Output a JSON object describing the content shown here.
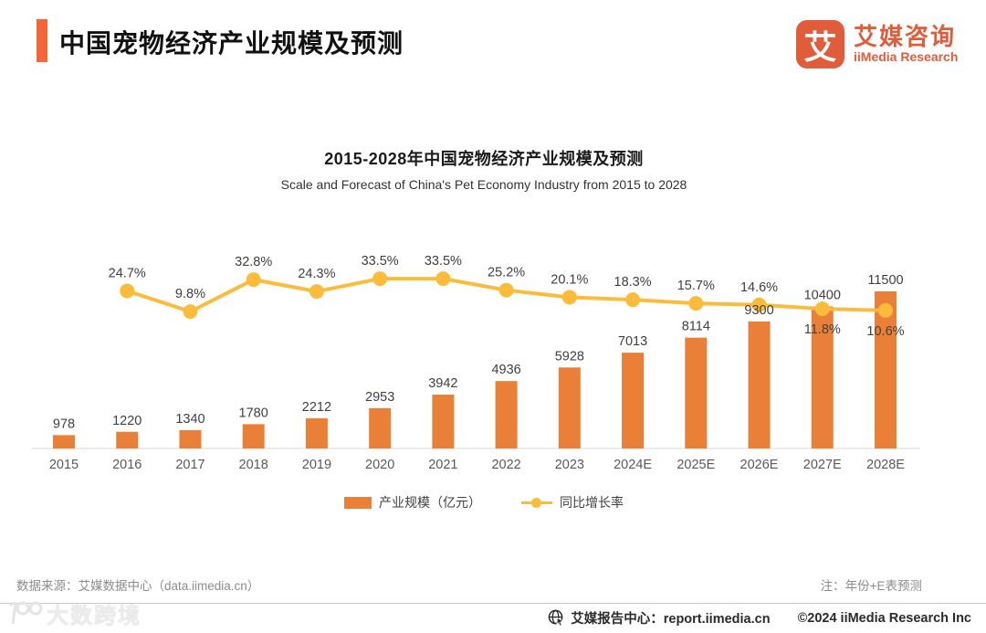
{
  "header": {
    "title": "中国宠物经济产业规模及预测",
    "logo": {
      "glyph": "艾",
      "name_cn": "艾媒咨询",
      "name_en": "iiMedia Research"
    }
  },
  "chart": {
    "title": "2015-2028年中国宠物经济产业规模及预测",
    "subtitle": "Scale and Forecast of China's Pet Economy Industry from 2015 to 2028"
  },
  "chart_data": {
    "type": "combo",
    "categories": [
      "2015",
      "2016",
      "2017",
      "2018",
      "2019",
      "2020",
      "2021",
      "2022",
      "2023",
      "2024E",
      "2025E",
      "2026E",
      "2027E",
      "2028E"
    ],
    "series": [
      {
        "name": "产业规模（亿元）",
        "type": "bar",
        "color": "#EA8038",
        "values": [
          978,
          1220,
          1340,
          1780,
          2212,
          2953,
          3942,
          4936,
          5928,
          7013,
          8114,
          9300,
          10400,
          11500
        ]
      },
      {
        "name": "同比增长率",
        "type": "line",
        "color": "#FBBC3C",
        "unit": "%",
        "values": [
          null,
          24.7,
          9.8,
          32.8,
          24.3,
          33.5,
          33.5,
          25.2,
          20.1,
          18.3,
          15.7,
          14.6,
          11.8,
          10.6
        ],
        "label_below_indices": [
          12,
          13
        ]
      }
    ],
    "bar_axis_max": 11500,
    "line_axis_range": [
      0,
      40
    ],
    "grid": false,
    "legend_position": "bottom",
    "axis_color": "#D9D9D9",
    "label_color": "#404040",
    "tick_color": "#595959"
  },
  "footnotes": {
    "source": "数据来源：艾媒数据中心（data.iimedia.cn）",
    "note": "注：年份+E表预测"
  },
  "bottom_bar": {
    "report_center": "艾媒报告中心：report.iimedia.cn",
    "copyright": "©2024  iiMedia Research  Inc",
    "watermark": "大数跨境"
  }
}
